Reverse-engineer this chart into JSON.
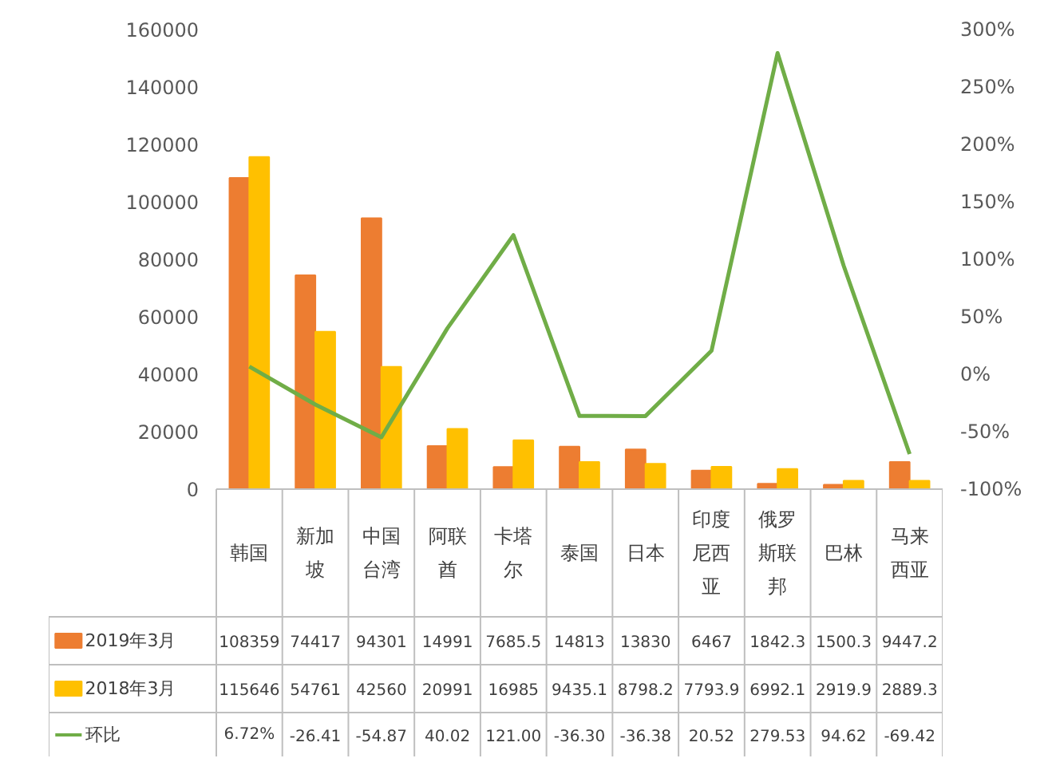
{
  "chart_data": {
    "type": "bar",
    "categories": [
      "韩国",
      "新加坡",
      "中国台湾",
      "阿联酋",
      "卡塔尔",
      "泰国",
      "日本",
      "印度尼西亚",
      "俄罗斯联邦",
      "巴林",
      "马来西亚"
    ],
    "series": [
      {
        "name": "2019年3月",
        "color": "#ed7d31",
        "values": [
          108359,
          74417,
          94301,
          14991,
          7685.5,
          14813,
          13830,
          6467,
          1842.3,
          1500.3,
          9447.2
        ],
        "value_labels": [
          "108359",
          "74417",
          "94301",
          "14991",
          "7685.5",
          "14813",
          "13830",
          "6467",
          "1842.3",
          "1500.3",
          "9447.2"
        ]
      },
      {
        "name": "2018年3月",
        "color": "#ffc000",
        "values": [
          115646,
          54761,
          42560,
          20991,
          16985,
          9435.1,
          8798.2,
          7793.9,
          6992.1,
          2919.9,
          2889.3
        ],
        "value_labels": [
          "115646",
          "54761",
          "42560",
          "20991",
          "16985",
          "9435.1",
          "8798.2",
          "7793.9",
          "6992.1",
          "2919.9",
          "2889.3"
        ]
      },
      {
        "name": "环比",
        "type": "line",
        "axis": "y2",
        "color": "#70ad47",
        "values": [
          6.72,
          -26.41,
          -54.87,
          40.02,
          121.0,
          -36.3,
          -36.38,
          20.52,
          279.53,
          94.62,
          -69.42
        ],
        "value_labels": [
          "6.72%",
          "-26.41",
          "-54.87",
          "40.02",
          "121.00",
          "-36.30",
          "-36.38",
          "20.52",
          "279.53",
          "94.62",
          "-69.42"
        ]
      }
    ],
    "ylim": [
      0,
      160000
    ],
    "yticks": [
      0,
      20000,
      40000,
      60000,
      80000,
      100000,
      120000,
      140000,
      160000
    ],
    "y2lim": [
      -100,
      300
    ],
    "legend": "bottom left",
    "y2ticks": [
      {
        "value": -100,
        "label": "-100%"
      },
      {
        "value": -50,
        "label": "-50%"
      },
      {
        "value": 0,
        "label": "0%"
      },
      {
        "value": 50,
        "label": "50%"
      },
      {
        "value": 100,
        "label": "100%"
      },
      {
        "value": 150,
        "label": "150%"
      },
      {
        "value": 200,
        "label": "200%"
      },
      {
        "value": 250,
        "label": "250%"
      },
      {
        "value": 300,
        "label": "300%"
      }
    ]
  }
}
